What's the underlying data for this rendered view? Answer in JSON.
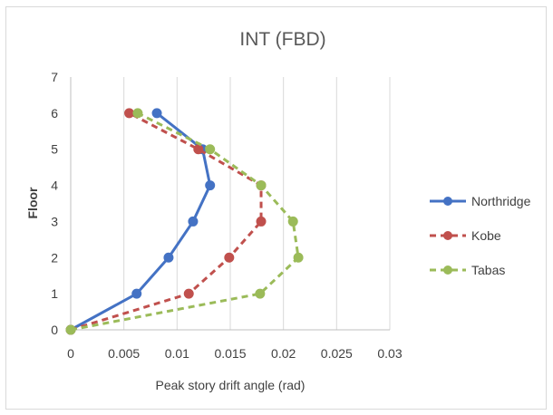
{
  "chart_data": {
    "type": "line",
    "title": "INT (FBD)",
    "xlabel": "Peak story drift angle (rad)",
    "ylabel": "Floor",
    "xlim": [
      0,
      0.03
    ],
    "ylim": [
      0,
      7
    ],
    "x_ticks": [
      "0",
      "0.005",
      "0.01",
      "0.015",
      "0.02",
      "0.025",
      "0.03"
    ],
    "y_ticks": [
      "0",
      "1",
      "2",
      "3",
      "4",
      "5",
      "6",
      "7"
    ],
    "grid": "vertical",
    "legend": "right",
    "series": [
      {
        "name": "Northridge",
        "color": "#4472c4",
        "style": "solid",
        "points": [
          {
            "x": 0,
            "y": 0
          },
          {
            "x": 0.0062,
            "y": 1
          },
          {
            "x": 0.0092,
            "y": 2
          },
          {
            "x": 0.0115,
            "y": 3
          },
          {
            "x": 0.0131,
            "y": 4
          },
          {
            "x": 0.0124,
            "y": 5
          },
          {
            "x": 0.0081,
            "y": 6
          }
        ]
      },
      {
        "name": "Kobe",
        "color": "#c0504d",
        "style": "dashed",
        "points": [
          {
            "x": 0,
            "y": 0
          },
          {
            "x": 0.0111,
            "y": 1
          },
          {
            "x": 0.0149,
            "y": 2
          },
          {
            "x": 0.0179,
            "y": 3
          },
          {
            "x": 0.0179,
            "y": 4
          },
          {
            "x": 0.012,
            "y": 5
          },
          {
            "x": 0.0055,
            "y": 6
          }
        ]
      },
      {
        "name": "Tabas",
        "color": "#9bbb59",
        "style": "dashed",
        "points": [
          {
            "x": 0,
            "y": 0
          },
          {
            "x": 0.0178,
            "y": 1
          },
          {
            "x": 0.0214,
            "y": 2
          },
          {
            "x": 0.0209,
            "y": 3
          },
          {
            "x": 0.0179,
            "y": 4
          },
          {
            "x": 0.0131,
            "y": 5
          },
          {
            "x": 0.0063,
            "y": 6
          }
        ]
      }
    ]
  }
}
